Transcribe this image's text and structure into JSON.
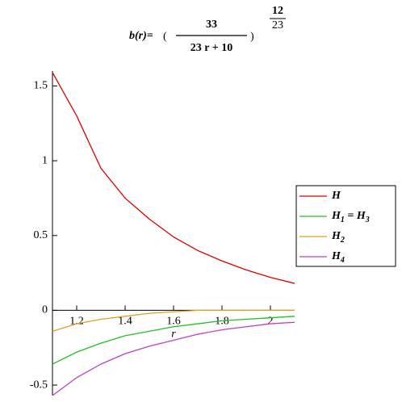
{
  "chart_data": {
    "type": "line",
    "title": {
      "lhs": "b(r)=",
      "numerator": "33",
      "denominator": "23 r + 10",
      "exponent_numerator": "12",
      "exponent_denominator": "23"
    },
    "x_label": "r",
    "x": [
      1.1,
      1.2,
      1.3,
      1.4,
      1.5,
      1.6,
      1.7,
      1.8,
      1.9,
      2.0,
      2.1
    ],
    "series": [
      {
        "name": "H",
        "color": "#e00000",
        "values": [
          1.59,
          1.3,
          0.95,
          0.75,
          0.61,
          0.49,
          0.4,
          0.33,
          0.27,
          0.22,
          0.18
        ]
      },
      {
        "name": "H1 = H3",
        "color": "#22c022",
        "values": [
          -0.36,
          -0.28,
          -0.22,
          -0.17,
          -0.14,
          -0.11,
          -0.09,
          -0.07,
          -0.06,
          -0.05,
          -0.04
        ]
      },
      {
        "name": "H2",
        "color": "#e0a020",
        "values": [
          -0.14,
          -0.09,
          -0.06,
          -0.04,
          -0.02,
          -0.01,
          0,
          0,
          0,
          0,
          0
        ]
      },
      {
        "name": "H4",
        "color": "#c040c0",
        "values": [
          -0.57,
          -0.45,
          -0.36,
          -0.29,
          -0.24,
          -0.2,
          -0.16,
          -0.13,
          -0.11,
          -0.09,
          -0.08
        ]
      }
    ],
    "xlim": [
      1.1,
      2.1
    ],
    "xticks": [
      1.2,
      1.4,
      1.6,
      1.8,
      2.0
    ],
    "ylim": [
      -0.57,
      1.6
    ],
    "yticks": [
      -0.5,
      0,
      0.5,
      1,
      1.5
    ],
    "legend": "right"
  }
}
